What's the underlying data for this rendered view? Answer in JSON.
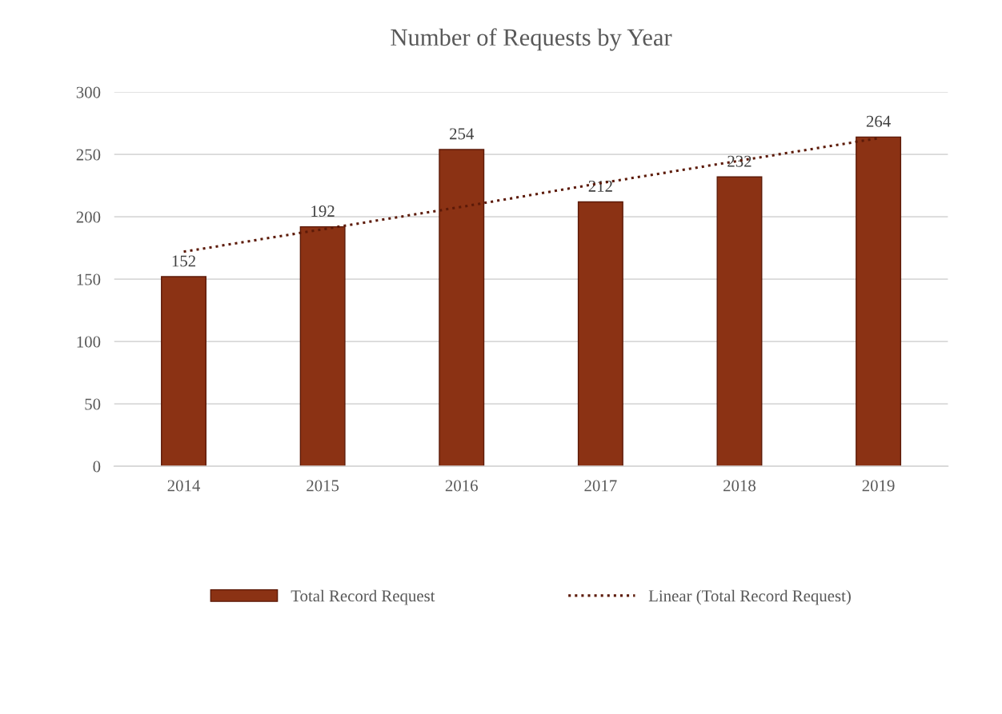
{
  "chart_data": {
    "type": "bar",
    "title": "Number of Requests by Year",
    "categories": [
      "2014",
      "2015",
      "2016",
      "2017",
      "2018",
      "2019"
    ],
    "series": [
      {
        "name": "Total Record Request",
        "color": "#8b3214",
        "values": [
          152,
          192,
          254,
          212,
          232,
          264
        ],
        "value_labels": [
          "152",
          "192",
          "254",
          "212",
          "232",
          "264"
        ]
      },
      {
        "name": "Linear (Total Record Request)",
        "type": "line",
        "color": "#5c1a08",
        "line_style": "dotted",
        "values": [
          172,
          190,
          208,
          227,
          245,
          263
        ]
      }
    ],
    "ylim": [
      0,
      300
    ],
    "yticks": [
      0,
      50,
      100,
      150,
      200,
      250,
      300
    ],
    "grid": "y",
    "legend": "bottom"
  }
}
